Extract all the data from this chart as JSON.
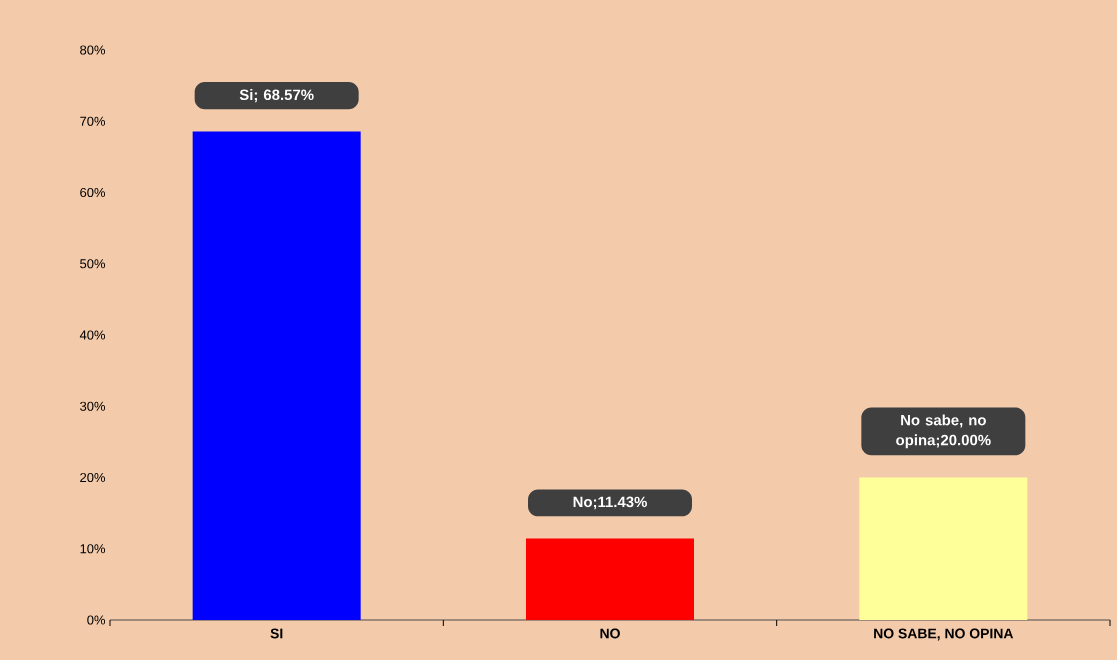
{
  "chart_data": {
    "type": "bar",
    "categories": [
      "SI",
      "NO",
      "NO SABE, NO OPINA"
    ],
    "values": [
      68.57,
      11.43,
      20.0
    ],
    "colors": [
      "#0000ff",
      "#ff0000",
      "#ffff99"
    ],
    "value_labels": [
      "Si; 68.57%",
      "No;11.43%",
      "No sabe, no opina;20.00%"
    ],
    "ylim": [
      0,
      80
    ],
    "yticks": [
      {
        "value": 0,
        "label": "0%"
      },
      {
        "value": 10,
        "label": "10%"
      },
      {
        "value": 20,
        "label": "20%"
      },
      {
        "value": 30,
        "label": "30%"
      },
      {
        "value": 40,
        "label": "40%"
      },
      {
        "value": 50,
        "label": "50%"
      },
      {
        "value": 60,
        "label": "60%"
      },
      {
        "value": 70,
        "label": "70%"
      },
      {
        "value": 80,
        "label": "80%"
      }
    ],
    "grid": false
  }
}
